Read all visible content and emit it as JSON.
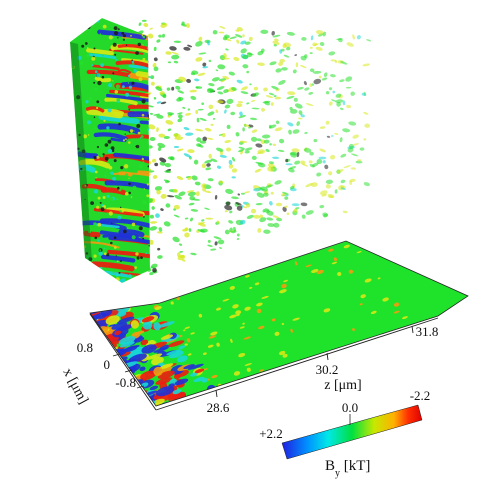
{
  "axes": {
    "x": {
      "label": "x [μm]",
      "ticks": [
        "0.8",
        "0",
        "-0.8"
      ]
    },
    "z": {
      "label": "z [μm]",
      "ticks": [
        "28.6",
        "30.2",
        "31.8"
      ]
    }
  },
  "colorbar": {
    "label": "By [kT]",
    "label_main": "B",
    "label_sub": "y",
    "label_unit": " [kT]",
    "min_label": "+2.2",
    "mid_label": "0.0",
    "max_label": "-2.2",
    "colors": [
      "#1f1fe0",
      "#0090ff",
      "#00e8e8",
      "#00e040",
      "#c8e800",
      "#ffb000",
      "#ff3000",
      "#e00000"
    ]
  },
  "palette": {
    "green": "#25e02a",
    "yellow": "#d6e815",
    "cyan": "#18d6d6",
    "blue": "#2030d8",
    "red": "#ee1c10",
    "orange": "#f49a10",
    "dark": "#1a1a1a"
  }
}
